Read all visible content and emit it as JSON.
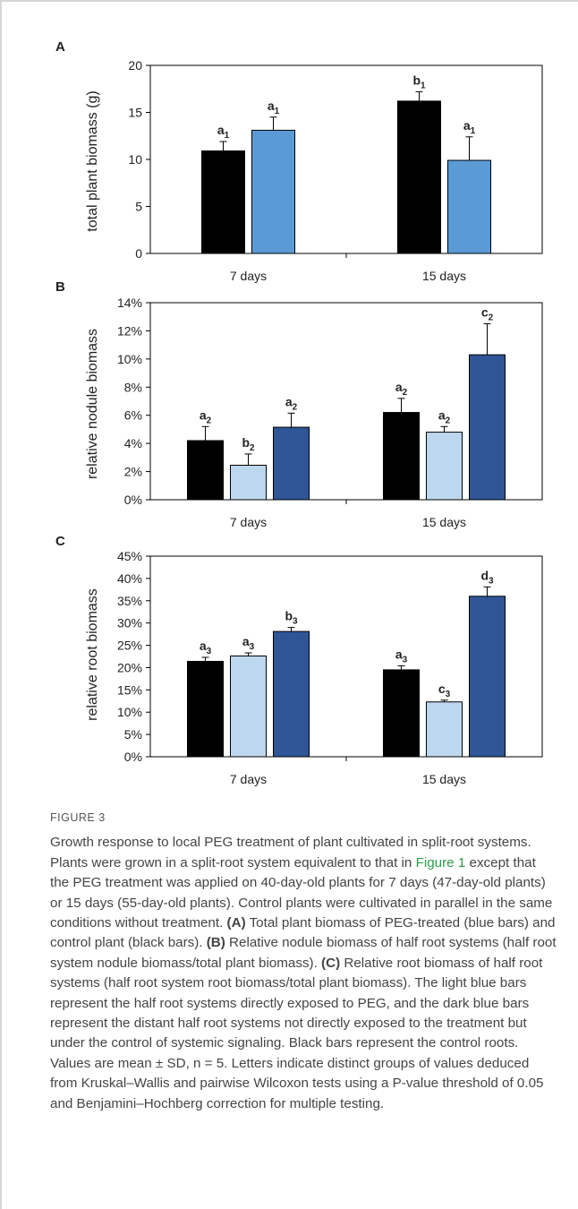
{
  "chart_data": [
    {
      "type": "bar",
      "panel_label": "A",
      "ylabel": "total plant biomass (g)",
      "ylim": [
        0,
        20
      ],
      "yticks": [
        0,
        5,
        10,
        15,
        20
      ],
      "ytick_labels": [
        "0",
        "5",
        "10",
        "15",
        "20"
      ],
      "categories": [
        "7 days",
        "15 days"
      ],
      "series": [
        {
          "color": "#000000",
          "values": [
            10.9,
            16.2
          ],
          "errors": [
            1.0,
            1.0
          ],
          "letters": [
            "a",
            "b"
          ],
          "subscripts": [
            "1",
            "1"
          ]
        },
        {
          "color": "#5b9bd5",
          "values": [
            13.1,
            9.9
          ],
          "errors": [
            1.4,
            2.5
          ],
          "letters": [
            "a",
            "a"
          ],
          "subscripts": [
            "1",
            "1"
          ]
        }
      ]
    },
    {
      "type": "bar",
      "panel_label": "B",
      "ylabel": "relative nodule biomass",
      "ylim": [
        0,
        14
      ],
      "yticks": [
        0,
        2,
        4,
        6,
        8,
        10,
        12,
        14
      ],
      "ytick_labels": [
        "0%",
        "2%",
        "4%",
        "6%",
        "8%",
        "10%",
        "12%",
        "14%"
      ],
      "categories": [
        "7 days",
        "15 days"
      ],
      "series": [
        {
          "color": "#000000",
          "values": [
            4.2,
            6.2
          ],
          "errors": [
            1.0,
            1.0
          ],
          "letters": [
            "a",
            "a"
          ],
          "subscripts": [
            "2",
            "2"
          ]
        },
        {
          "color": "#bdd7ee",
          "values": [
            2.45,
            4.8
          ],
          "errors": [
            0.8,
            0.4
          ],
          "letters": [
            "b",
            "a"
          ],
          "subscripts": [
            "2",
            "2"
          ]
        },
        {
          "color": "#2f5597",
          "values": [
            5.15,
            10.3
          ],
          "errors": [
            1.0,
            2.2
          ],
          "letters": [
            "a",
            "c"
          ],
          "subscripts": [
            "2",
            "2"
          ]
        }
      ]
    },
    {
      "type": "bar",
      "panel_label": "C",
      "ylabel": "relative root biomass",
      "ylim": [
        0,
        45
      ],
      "yticks": [
        0,
        5,
        10,
        15,
        20,
        25,
        30,
        35,
        40,
        45
      ],
      "ytick_labels": [
        "0%",
        "5%",
        "10%",
        "15%",
        "20%",
        "25%",
        "30%",
        "35%",
        "40%",
        "45%"
      ],
      "categories": [
        "7 days",
        "15 days"
      ],
      "series": [
        {
          "color": "#000000",
          "values": [
            21.4,
            19.5
          ],
          "errors": [
            0.9,
            0.9
          ],
          "letters": [
            "a",
            "a"
          ],
          "subscripts": [
            "3",
            "3"
          ]
        },
        {
          "color": "#bdd7ee",
          "values": [
            22.6,
            12.3
          ],
          "errors": [
            0.7,
            0.4
          ],
          "letters": [
            "a",
            "c"
          ],
          "subscripts": [
            "3",
            "3"
          ]
        },
        {
          "color": "#2f5597",
          "values": [
            28.1,
            36.0
          ],
          "errors": [
            0.9,
            2.1
          ],
          "letters": [
            "b",
            "d"
          ],
          "subscripts": [
            "3",
            "3"
          ]
        }
      ]
    }
  ],
  "caption": {
    "figure_label": "FIGURE 3",
    "text_1": "Growth response to local PEG treatment of plant cultivated in split-root systems. Plants were grown in a split-root system equivalent to that in ",
    "link_text": "Figure 1",
    "text_2": " except that the PEG treatment was applied on 40-day-old plants for 7 days (47-day-old plants) or 15 days (55-day-old plants). Control plants were cultivated in parallel in the same conditions without treatment. ",
    "label_a": "(A)",
    "text_a": " Total plant biomass of PEG-treated (blue bars) and control plant (black bars). ",
    "label_b": "(B)",
    "text_b": " Relative nodule biomass of half root systems (half root system nodule biomass/total plant biomass). ",
    "label_c": "(C)",
    "text_c": " Relative root biomass of half root systems (half root system root biomass/total plant biomass). The light blue bars represent the half root systems directly exposed to PEG, and the dark blue bars represent the distant half root systems not directly exposed to the treatment but under the control of systemic signaling. Black bars represent the control roots. Values are mean ± SD, n = 5. Letters indicate distinct groups of values deduced from Kruskal–Wallis and pairwise Wilcoxon tests using a P-value threshold of 0.05 and Benjamini–Hochberg correction for multiple testing."
  }
}
